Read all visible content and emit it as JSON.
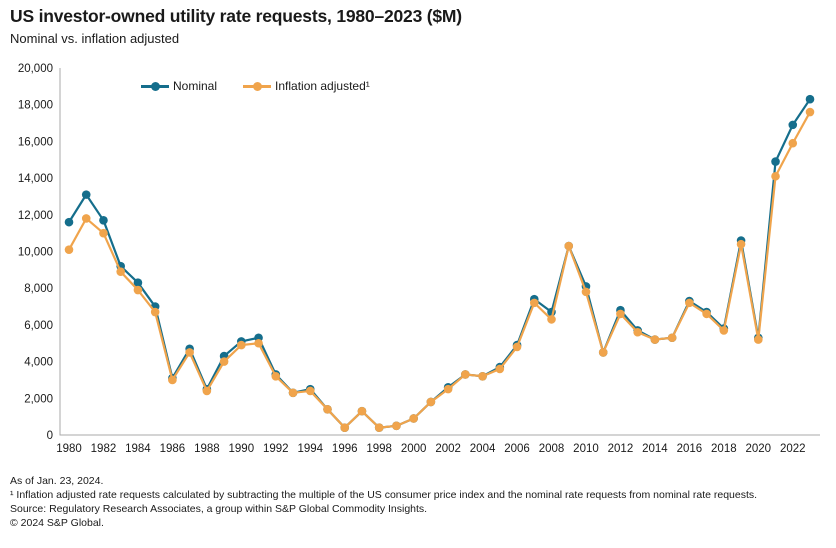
{
  "header": {
    "title": "US investor-owned utility rate requests, 1980–2023  ($M)",
    "subtitle": "Nominal vs. inflation adjusted"
  },
  "legend": [
    {
      "label": "Nominal",
      "color": "#156e8c"
    },
    {
      "label": "Inflation adjusted¹",
      "color": "#f0a44c"
    }
  ],
  "chart_data": {
    "type": "line",
    "title": "US investor-owned utility rate requests, 1980–2023 ($M)",
    "subtitle": "Nominal vs. inflation adjusted",
    "xlabel": "",
    "ylabel": "",
    "x": [
      1980,
      1981,
      1982,
      1983,
      1984,
      1985,
      1986,
      1987,
      1988,
      1989,
      1990,
      1991,
      1992,
      1993,
      1994,
      1995,
      1996,
      1997,
      1998,
      1999,
      2000,
      2001,
      2002,
      2003,
      2004,
      2005,
      2006,
      2007,
      2008,
      2009,
      2010,
      2011,
      2012,
      2013,
      2014,
      2015,
      2016,
      2017,
      2018,
      2019,
      2020,
      2021,
      2022,
      2023
    ],
    "series": [
      {
        "name": "Nominal",
        "color": "#156e8c",
        "values": [
          11600,
          13100,
          11700,
          9200,
          8300,
          7000,
          3100,
          4700,
          2500,
          4300,
          5100,
          5300,
          3300,
          2300,
          2500,
          1400,
          400,
          1300,
          400,
          500,
          900,
          1800,
          2600,
          3300,
          3200,
          3700,
          4900,
          7400,
          6700,
          10300,
          8100,
          4500,
          6800,
          5700,
          5200,
          5300,
          7300,
          6700,
          5800,
          10600,
          5300,
          14900,
          16900,
          18300
        ]
      },
      {
        "name": "Inflation adjusted¹",
        "color": "#f0a44c",
        "values": [
          10100,
          11800,
          11000,
          8900,
          7900,
          6700,
          3000,
          4500,
          2400,
          4000,
          4900,
          5000,
          3200,
          2300,
          2400,
          1400,
          400,
          1300,
          400,
          500,
          900,
          1800,
          2500,
          3300,
          3200,
          3600,
          4800,
          7200,
          6300,
          10300,
          7800,
          4500,
          6600,
          5600,
          5200,
          5300,
          7200,
          6600,
          5700,
          10400,
          5200,
          14100,
          15900,
          17600
        ]
      }
    ],
    "ylim": [
      0,
      20000
    ],
    "ytick_step": 2000,
    "xtick_start": 1980,
    "xtick_end": 2022,
    "xtick_step": 2,
    "grid": false,
    "legend_position": "top-inside"
  },
  "footer": {
    "as_of": "As of Jan. 23, 2024.",
    "footnote": "¹ Inflation adjusted rate requests calculated by subtracting the multiple of the US consumer price index and the nominal rate requests from nominal rate requests.",
    "source": "Source: Regulatory Research Associates, a group within S&P Global Commodity Insights.",
    "copyright": "© 2024 S&P Global."
  },
  "colors": {
    "nominal": "#156e8c",
    "inflation_adjusted": "#f0a44c",
    "axis": "#a9a9a9",
    "text": "#1a1a1a"
  }
}
